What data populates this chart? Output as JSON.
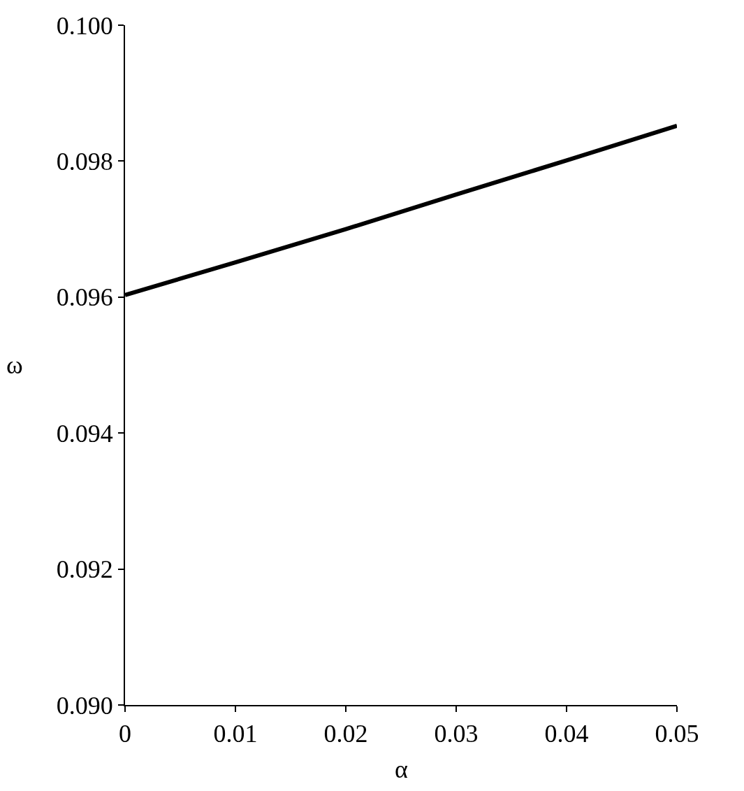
{
  "chart_data": {
    "type": "line",
    "xlabel": "α",
    "ylabel": "ω",
    "x": [
      0,
      0.01,
      0.02,
      0.03,
      0.04,
      0.05
    ],
    "series": [
      {
        "color": "#000000",
        "values": [
          0.09603,
          0.09651,
          0.097,
          0.09751,
          0.09801,
          0.09852
        ]
      }
    ],
    "xlim": [
      0,
      0.05
    ],
    "xticks": [
      {
        "value": 0,
        "label": "0"
      },
      {
        "value": 0.01,
        "label": "0.01"
      },
      {
        "value": 0.02,
        "label": "0.02"
      },
      {
        "value": 0.03,
        "label": "0.03"
      },
      {
        "value": 0.04,
        "label": "0.04"
      },
      {
        "value": 0.05,
        "label": "0.05"
      }
    ],
    "ylim": [
      0.09,
      0.1
    ],
    "yticks": [
      {
        "value": 0.09,
        "label": "0.090"
      },
      {
        "value": 0.092,
        "label": "0.092"
      },
      {
        "value": 0.094,
        "label": "0.094"
      },
      {
        "value": 0.096,
        "label": "0.096"
      },
      {
        "value": 0.098,
        "label": "0.098"
      },
      {
        "value": 0.1,
        "label": "0.100"
      }
    ],
    "legend": false,
    "line_style": "solid",
    "marker": "none"
  }
}
